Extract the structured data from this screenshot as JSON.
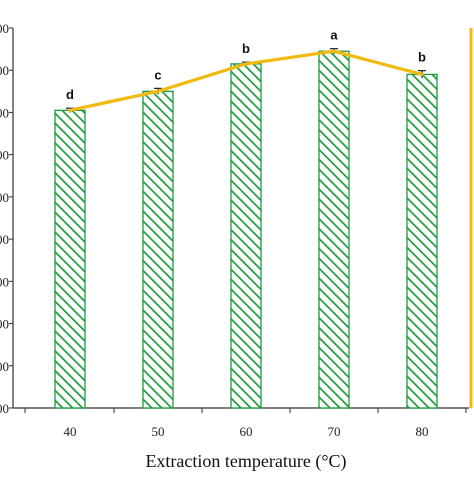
{
  "chart_data": {
    "type": "bar",
    "xlabel": "Extraction temperature (°C)",
    "categories": [
      "40",
      "50",
      "60",
      "70",
      "80"
    ],
    "series": [
      {
        "type": "bar",
        "values": [
          7.05,
          7.5,
          8.15,
          8.45,
          7.9
        ],
        "error": [
          0.05,
          0.07,
          0.04,
          0.06,
          0.09
        ],
        "labels": [
          "d",
          "c",
          "b",
          "a",
          "b"
        ]
      },
      {
        "type": "line",
        "values": [
          7.05,
          7.5,
          8.15,
          8.45,
          7.9
        ]
      }
    ],
    "y_ticks_visible": [
      "00",
      "00",
      "00",
      "00",
      "00",
      "00",
      "00",
      "00",
      "00",
      "00"
    ],
    "ylim": [
      0,
      9
    ],
    "colors": {
      "bar_hatch": "#1e9a3c",
      "line": "#f2b90f",
      "error_bar": "#222222",
      "axis": "#333333",
      "right_axis": "#f2b90f"
    },
    "grid": false
  }
}
